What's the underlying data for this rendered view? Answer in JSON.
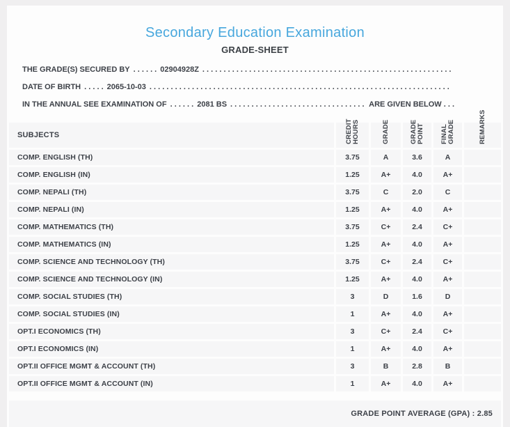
{
  "page": {
    "title": "Secondary Education Examination",
    "subtitle": "GRADE-SHEET"
  },
  "info_lines": [
    {
      "label": "THE GRADE(S) SECURED BY",
      "pre_dots": ". . . . . .",
      "value": "02904928Z",
      "fill_dots": ". . . . . . . . . . . . . . . . . . . . . . . . . . . . . . . . . . . . . . . . . . . . . . . . . . . . . . . . . . . . . . . . . . . . . . . . . . . . . . . .",
      "suffix": ""
    },
    {
      "label": "DATE OF BIRTH",
      "pre_dots": ". . . . .",
      "value": "2065-10-03",
      "fill_dots": ". . . . . . . . . . . . . . . . . . . . . . . . . . . . . . . . . . . . . . . . . . . . . . . . . . . . . . . . . . . . . . . . . . . . . . . . . . . . . . . .",
      "suffix": ""
    },
    {
      "label": "IN THE ANNUAL SEE EXAMINATION OF",
      "pre_dots": ". . . . . .",
      "value": "2081 BS",
      "fill_dots": ". . . . . . . . . . . . . . . . . . . . . . . . . . . . . . . . . . . . . . . . . . . . . . . . . . . . . . . . . . . . . . . . . . . . . . . . . . . . . . . .",
      "suffix": "ARE GIVEN BELOW . . ."
    }
  ],
  "table": {
    "columns": [
      {
        "label": "SUBJECTS",
        "rotated": false
      },
      {
        "label": "CREDIT\nHOURS",
        "rotated": true,
        "lines": 2
      },
      {
        "label": "GRADE",
        "rotated": true,
        "lines": 1
      },
      {
        "label": "GRADE\nPOINT",
        "rotated": true,
        "lines": 2
      },
      {
        "label": "FINAL\nGRADE",
        "rotated": true,
        "lines": 2
      },
      {
        "label": "REMARKS",
        "rotated": true,
        "lines": 1
      }
    ],
    "rows": [
      {
        "subject": "COMP. ENGLISH (TH)",
        "credit_hours": "3.75",
        "grade": "A",
        "grade_point": "3.6",
        "final_grade": "A",
        "remarks": ""
      },
      {
        "subject": "COMP. ENGLISH (IN)",
        "credit_hours": "1.25",
        "grade": "A+",
        "grade_point": "4.0",
        "final_grade": "A+",
        "remarks": ""
      },
      {
        "subject": "COMP. NEPALI (TH)",
        "credit_hours": "3.75",
        "grade": "C",
        "grade_point": "2.0",
        "final_grade": "C",
        "remarks": ""
      },
      {
        "subject": "COMP. NEPALI (IN)",
        "credit_hours": "1.25",
        "grade": "A+",
        "grade_point": "4.0",
        "final_grade": "A+",
        "remarks": ""
      },
      {
        "subject": "COMP. MATHEMATICS (TH)",
        "credit_hours": "3.75",
        "grade": "C+",
        "grade_point": "2.4",
        "final_grade": "C+",
        "remarks": ""
      },
      {
        "subject": "COMP. MATHEMATICS (IN)",
        "credit_hours": "1.25",
        "grade": "A+",
        "grade_point": "4.0",
        "final_grade": "A+",
        "remarks": ""
      },
      {
        "subject": "COMP. SCIENCE AND TECHNOLOGY (TH)",
        "credit_hours": "3.75",
        "grade": "C+",
        "grade_point": "2.4",
        "final_grade": "C+",
        "remarks": ""
      },
      {
        "subject": "COMP. SCIENCE AND TECHNOLOGY (IN)",
        "credit_hours": "1.25",
        "grade": "A+",
        "grade_point": "4.0",
        "final_grade": "A+",
        "remarks": ""
      },
      {
        "subject": "COMP. SOCIAL STUDIES (TH)",
        "credit_hours": "3",
        "grade": "D",
        "grade_point": "1.6",
        "final_grade": "D",
        "remarks": ""
      },
      {
        "subject": "COMP. SOCIAL STUDIES (IN)",
        "credit_hours": "1",
        "grade": "A+",
        "grade_point": "4.0",
        "final_grade": "A+",
        "remarks": ""
      },
      {
        "subject": "OPT.I ECONOMICS (TH)",
        "credit_hours": "3",
        "grade": "C+",
        "grade_point": "2.4",
        "final_grade": "C+",
        "remarks": ""
      },
      {
        "subject": "OPT.I ECONOMICS (IN)",
        "credit_hours": "1",
        "grade": "A+",
        "grade_point": "4.0",
        "final_grade": "A+",
        "remarks": ""
      },
      {
        "subject": "OPT.II OFFICE MGMT & ACCOUNT (TH)",
        "credit_hours": "3",
        "grade": "B",
        "grade_point": "2.8",
        "final_grade": "B",
        "remarks": ""
      },
      {
        "subject": "OPT.II OFFICE MGMT & ACCOUNT (IN)",
        "credit_hours": "1",
        "grade": "A+",
        "grade_point": "4.0",
        "final_grade": "A+",
        "remarks": ""
      }
    ]
  },
  "footer": {
    "gpa_text": "GRADE POINT AVERAGE (GPA) : 2.85"
  },
  "colors": {
    "accent_blue": "#47a7dd",
    "text_dark": "#3d4148",
    "cell_bg": "#f6f6f7",
    "page_bg": "#f0eff0",
    "sheet_bg": "#fdfdfd"
  }
}
